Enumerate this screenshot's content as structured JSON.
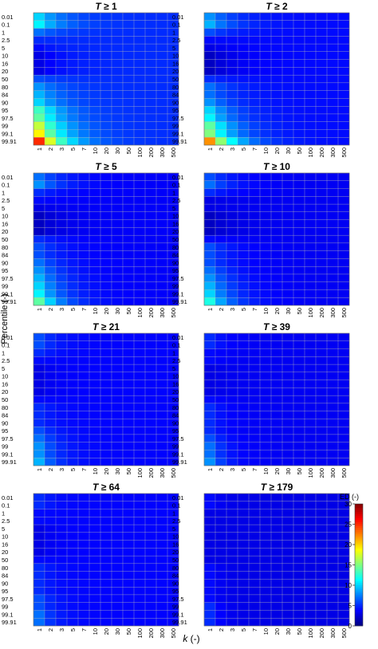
{
  "chart_data": {
    "type": "heatmap",
    "ylabel": "Percentile (-)",
    "xlabel": "k (-)",
    "x_categories": [
      "1",
      "2",
      "3",
      "5",
      "7",
      "10",
      "20",
      "30",
      "50",
      "100",
      "200",
      "300",
      "500"
    ],
    "y_categories": [
      "0.01",
      "0.1",
      "1",
      "2.5",
      "5",
      "10",
      "16",
      "20",
      "50",
      "80",
      "84",
      "90",
      "95",
      "97.5",
      "99",
      "99.1",
      "99.91"
    ],
    "colorbar": {
      "label": "ED (-)",
      "min": 0,
      "max": 30,
      "ticks": [
        0,
        5,
        10,
        15,
        20,
        25,
        30
      ],
      "colormap": "jet"
    },
    "panels": [
      {
        "title_var": "T",
        "title_rest": " ≥ 1",
        "base": 5.0,
        "decay": 2.2,
        "rows": [
          10,
          11,
          7,
          5,
          4,
          3,
          3,
          3,
          6,
          8,
          9,
          10,
          13,
          14,
          17,
          19,
          25
        ]
      },
      {
        "title_var": "T",
        "title_rest": " ≥ 2",
        "base": 4.0,
        "decay": 2.2,
        "rows": [
          8,
          9,
          6,
          4,
          3,
          2,
          2,
          2,
          5,
          7,
          7,
          8,
          10,
          11,
          14,
          15,
          22
        ]
      },
      {
        "title_var": "T",
        "title_rest": " ≥ 5",
        "base": 3.6,
        "decay": 2.0,
        "rows": [
          7,
          8,
          5,
          4,
          3,
          2,
          2,
          2,
          5,
          6,
          6,
          7,
          8,
          9,
          10,
          11,
          14
        ]
      },
      {
        "title_var": "T",
        "title_rest": " ≥ 10",
        "base": 3.4,
        "decay": 2.0,
        "rows": [
          6,
          7,
          5,
          3,
          3,
          2,
          2,
          2,
          4,
          6,
          6,
          6,
          7,
          8,
          9,
          10,
          12
        ]
      },
      {
        "title_var": "T",
        "title_rest": " ≥ 21",
        "base": 3.8,
        "decay": 1.5,
        "rows": [
          6,
          6,
          5,
          4,
          3,
          3,
          3,
          3,
          4,
          5,
          5,
          5,
          6,
          7,
          8,
          8,
          9
        ]
      },
      {
        "title_var": "T",
        "title_rest": " ≥ 39",
        "base": 3.4,
        "decay": 1.4,
        "rows": [
          5,
          5,
          4,
          4,
          3,
          3,
          3,
          3,
          4,
          5,
          5,
          5,
          5,
          6,
          7,
          7,
          8
        ]
      },
      {
        "title_var": "T",
        "title_rest": " ≥ 64",
        "base": 3.8,
        "decay": 1.3,
        "rows": [
          5,
          5,
          4,
          4,
          3,
          3,
          3,
          3,
          4,
          5,
          5,
          5,
          5,
          6,
          6,
          7,
          7
        ]
      },
      {
        "title_var": "T",
        "title_rest": " ≥ 179",
        "base": 3.0,
        "decay": 1.0,
        "rows": [
          4,
          4,
          3,
          3,
          3,
          3,
          3,
          3,
          3,
          4,
          4,
          4,
          4,
          4,
          5,
          5,
          5
        ]
      }
    ]
  }
}
